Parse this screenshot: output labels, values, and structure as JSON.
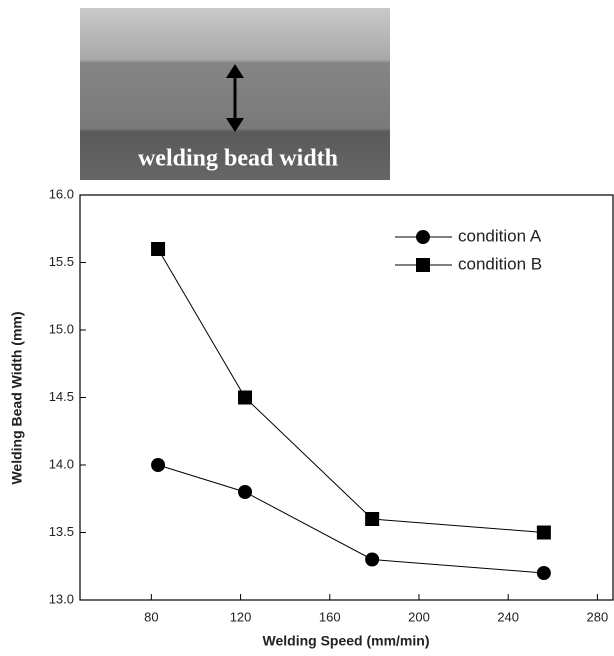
{
  "chart_data": {
    "type": "line",
    "image_label": "welding bead width",
    "x_label": "Welding Speed (mm/min)",
    "y_label": "Welding Bead Width (mm)",
    "x": [
      83,
      122,
      179,
      256
    ],
    "series": [
      {
        "name": "condition A",
        "marker": "circle",
        "color": "#000000",
        "values": [
          14.0,
          13.8,
          13.3,
          13.2
        ]
      },
      {
        "name": "condition B",
        "marker": "square",
        "color": "#000000",
        "values": [
          15.6,
          14.5,
          13.6,
          13.5
        ]
      }
    ],
    "xlim": [
      48,
      287
    ],
    "xticks": [
      80,
      120,
      160,
      200,
      240,
      280
    ],
    "ylim": [
      13.0,
      16.0
    ],
    "yticks": [
      {
        "value": 13.0,
        "label": "13.0"
      },
      {
        "value": 13.5,
        "label": "13.5"
      },
      {
        "value": 14.0,
        "label": "14.0"
      },
      {
        "value": 14.5,
        "label": "14.5"
      },
      {
        "value": 15.0,
        "label": "15.0"
      },
      {
        "value": 15.5,
        "label": "15.5"
      },
      {
        "value": 16.0,
        "label": "16.0"
      }
    ],
    "legend": "upper right",
    "grid": false
  }
}
